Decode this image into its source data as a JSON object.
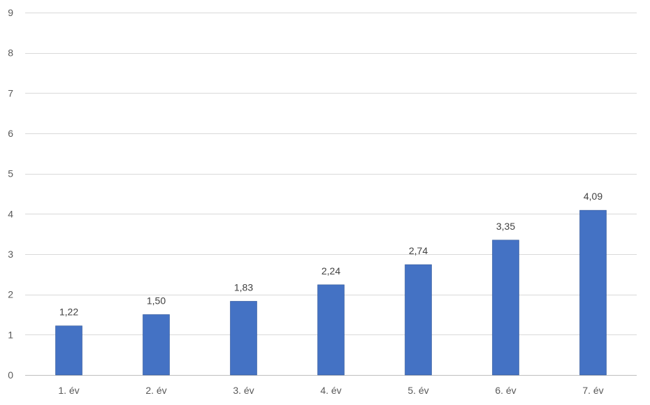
{
  "chart_data": {
    "type": "bar",
    "categories": [
      "1. év",
      "2. év",
      "3. év",
      "4. év",
      "5. év",
      "6. év",
      "7. év"
    ],
    "values": [
      1.22,
      1.5,
      1.83,
      2.24,
      2.74,
      3.35,
      4.09
    ],
    "data_labels": [
      "1,22",
      "1,50",
      "1,83",
      "2,24",
      "2,74",
      "3,35",
      "4,09"
    ],
    "y_ticks": [
      0,
      1,
      2,
      3,
      4,
      5,
      6,
      7,
      8,
      9
    ],
    "ylim": [
      0,
      9
    ],
    "grid": true,
    "title": "",
    "xlabel": "",
    "ylabel": "",
    "bar_color": "#4472C4"
  }
}
